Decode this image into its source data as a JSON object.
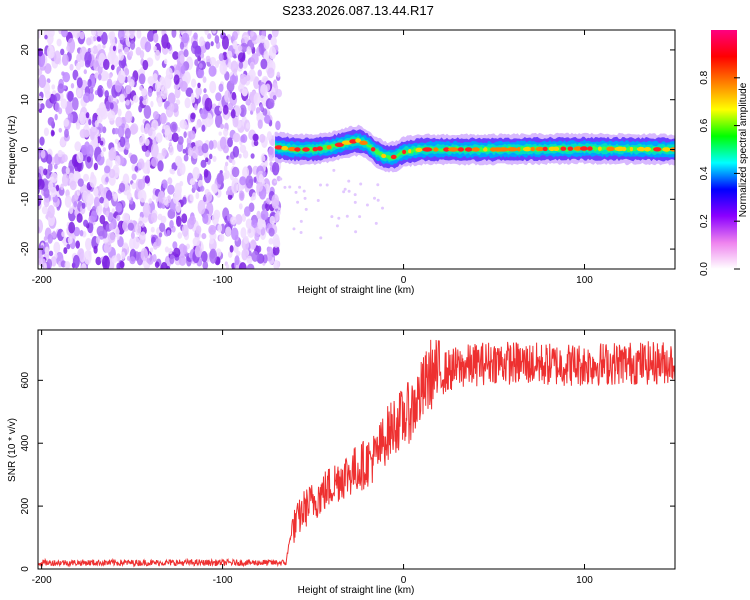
{
  "title": "S233.2026.087.13.44.R17",
  "chart_data": [
    {
      "type": "heatmap",
      "name": "spectrogram",
      "xlabel": "Height of straight line (km)",
      "ylabel": "Frequency (Hz)",
      "xlim": [
        -202,
        150
      ],
      "ylim": [
        -24,
        24
      ],
      "xticks": [
        -200,
        -100,
        0,
        100
      ],
      "yticks": [
        -20,
        -10,
        0,
        10,
        20
      ],
      "noise_region_x": [
        -202,
        -71
      ],
      "signal_start_x": -71,
      "signal_ridge": [
        {
          "x": -71,
          "y": 0.5
        },
        {
          "x": -60,
          "y": 0
        },
        {
          "x": -50,
          "y": 0
        },
        {
          "x": -40,
          "y": 0.5
        },
        {
          "x": -30,
          "y": 1.5
        },
        {
          "x": -25,
          "y": 1.8
        },
        {
          "x": -20,
          "y": 1
        },
        {
          "x": -15,
          "y": -0.5
        },
        {
          "x": -10,
          "y": -1.5
        },
        {
          "x": -5,
          "y": -1.5
        },
        {
          "x": 0,
          "y": -0.5
        },
        {
          "x": 10,
          "y": 0
        },
        {
          "x": 50,
          "y": 0
        },
        {
          "x": 100,
          "y": 0.2
        },
        {
          "x": 150,
          "y": 0
        }
      ],
      "colorbar": {
        "label": "Normalized spectral amplitude",
        "range": [
          0,
          1
        ],
        "ticks": [
          "0.0",
          "0.2",
          "0.4",
          "0.6",
          "0.8"
        ],
        "colors": [
          "#ffffff",
          "#ee82ee",
          "#8b00ff",
          "#0000ff",
          "#00ffff",
          "#00ff00",
          "#ffff00",
          "#ff8000",
          "#ff0000",
          "#ff0080"
        ]
      }
    },
    {
      "type": "line",
      "name": "snr",
      "xlabel": "Height of straight line (km)",
      "ylabel": "SNR (10 * v/v)",
      "xlim": [
        -202,
        150
      ],
      "ylim": [
        0,
        760
      ],
      "xticks": [
        -200,
        -100,
        0,
        100
      ],
      "yticks": [
        0,
        200,
        400,
        600
      ],
      "color": "#ee3030",
      "series": [
        {
          "name": "SNR",
          "x": [
            -202,
            -180,
            -160,
            -140,
            -120,
            -100,
            -80,
            -65,
            -62,
            -55,
            -45,
            -35,
            -25,
            -15,
            -10,
            -5,
            0,
            5,
            10,
            15,
            20,
            30,
            40,
            50,
            60,
            80,
            100,
            120,
            140,
            150
          ],
          "y": [
            20,
            20,
            20,
            20,
            20,
            20,
            20,
            20,
            120,
            190,
            240,
            290,
            320,
            360,
            420,
            460,
            480,
            510,
            560,
            620,
            620,
            640,
            650,
            660,
            655,
            650,
            650,
            655,
            655,
            660
          ]
        }
      ]
    }
  ]
}
